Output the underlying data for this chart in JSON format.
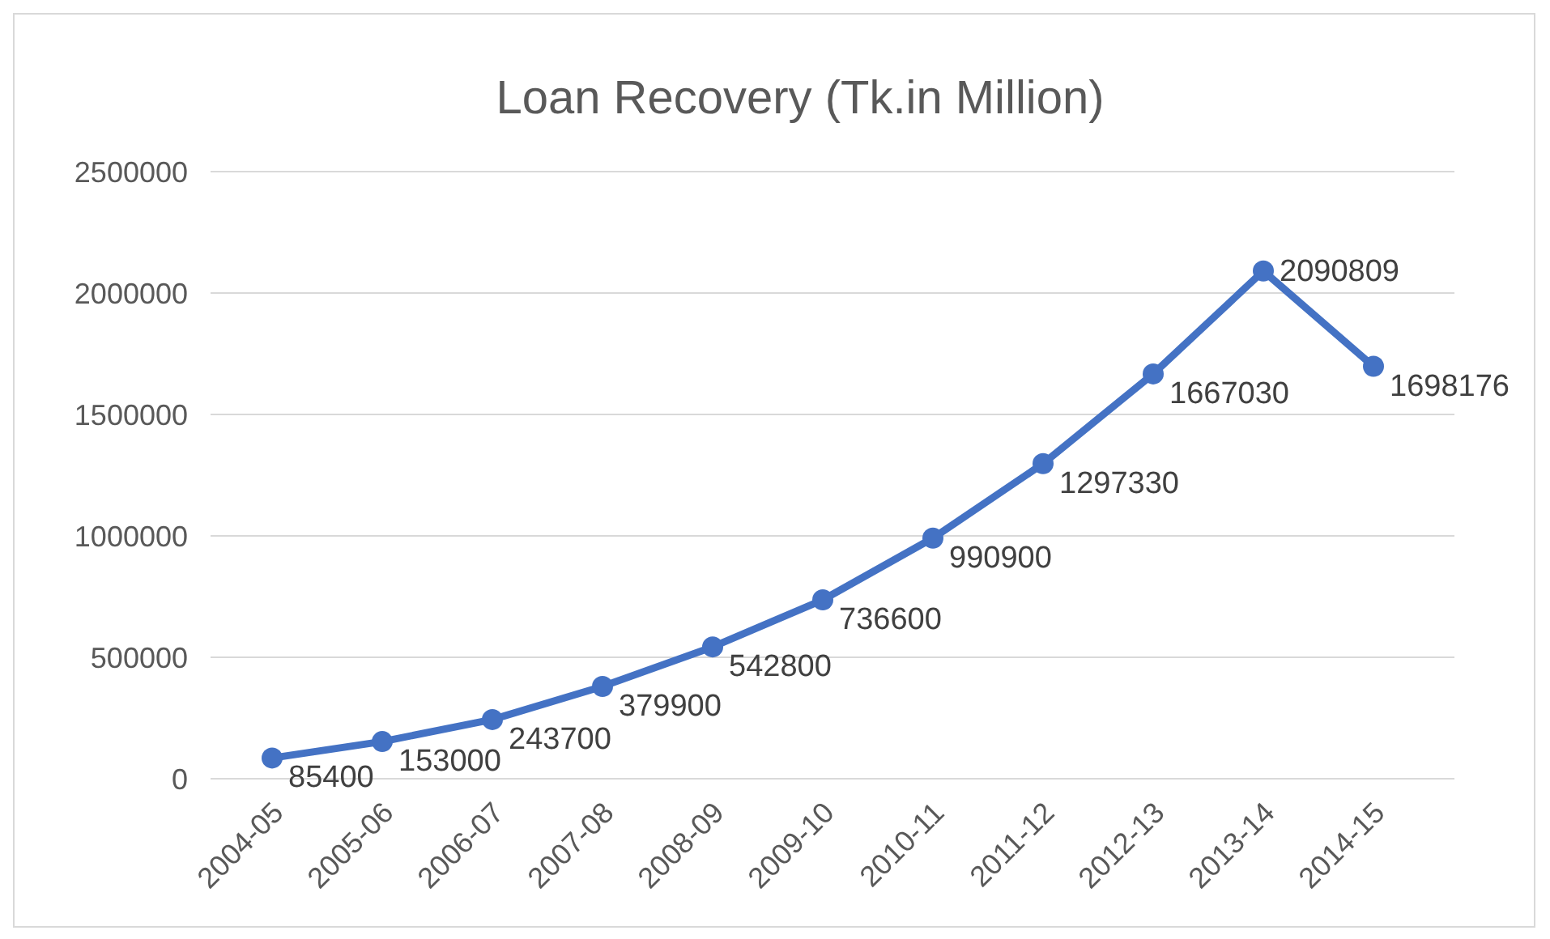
{
  "chart_data": {
    "type": "line",
    "title": "Loan Recovery (Tk.in Million)",
    "categories": [
      "2004-05",
      "2005-06",
      "2006-07",
      "2007-08",
      "2008-09",
      "2009-10",
      "2010-11",
      "2011-12",
      "2012-13",
      "2013-14",
      "2014-15"
    ],
    "series": [
      {
        "color": "#4472c4",
        "values": [
          85400,
          153000,
          243700,
          379900,
          542800,
          736600,
          990900,
          1297330,
          1667030,
          2090809,
          1698176
        ]
      }
    ],
    "ylim": [
      0,
      2500000
    ],
    "yticks": [
      0,
      500000,
      1000000,
      1500000,
      2000000,
      2500000
    ],
    "grid": "y",
    "marker": "circle",
    "line_style": "solid",
    "data_labels": true
  }
}
